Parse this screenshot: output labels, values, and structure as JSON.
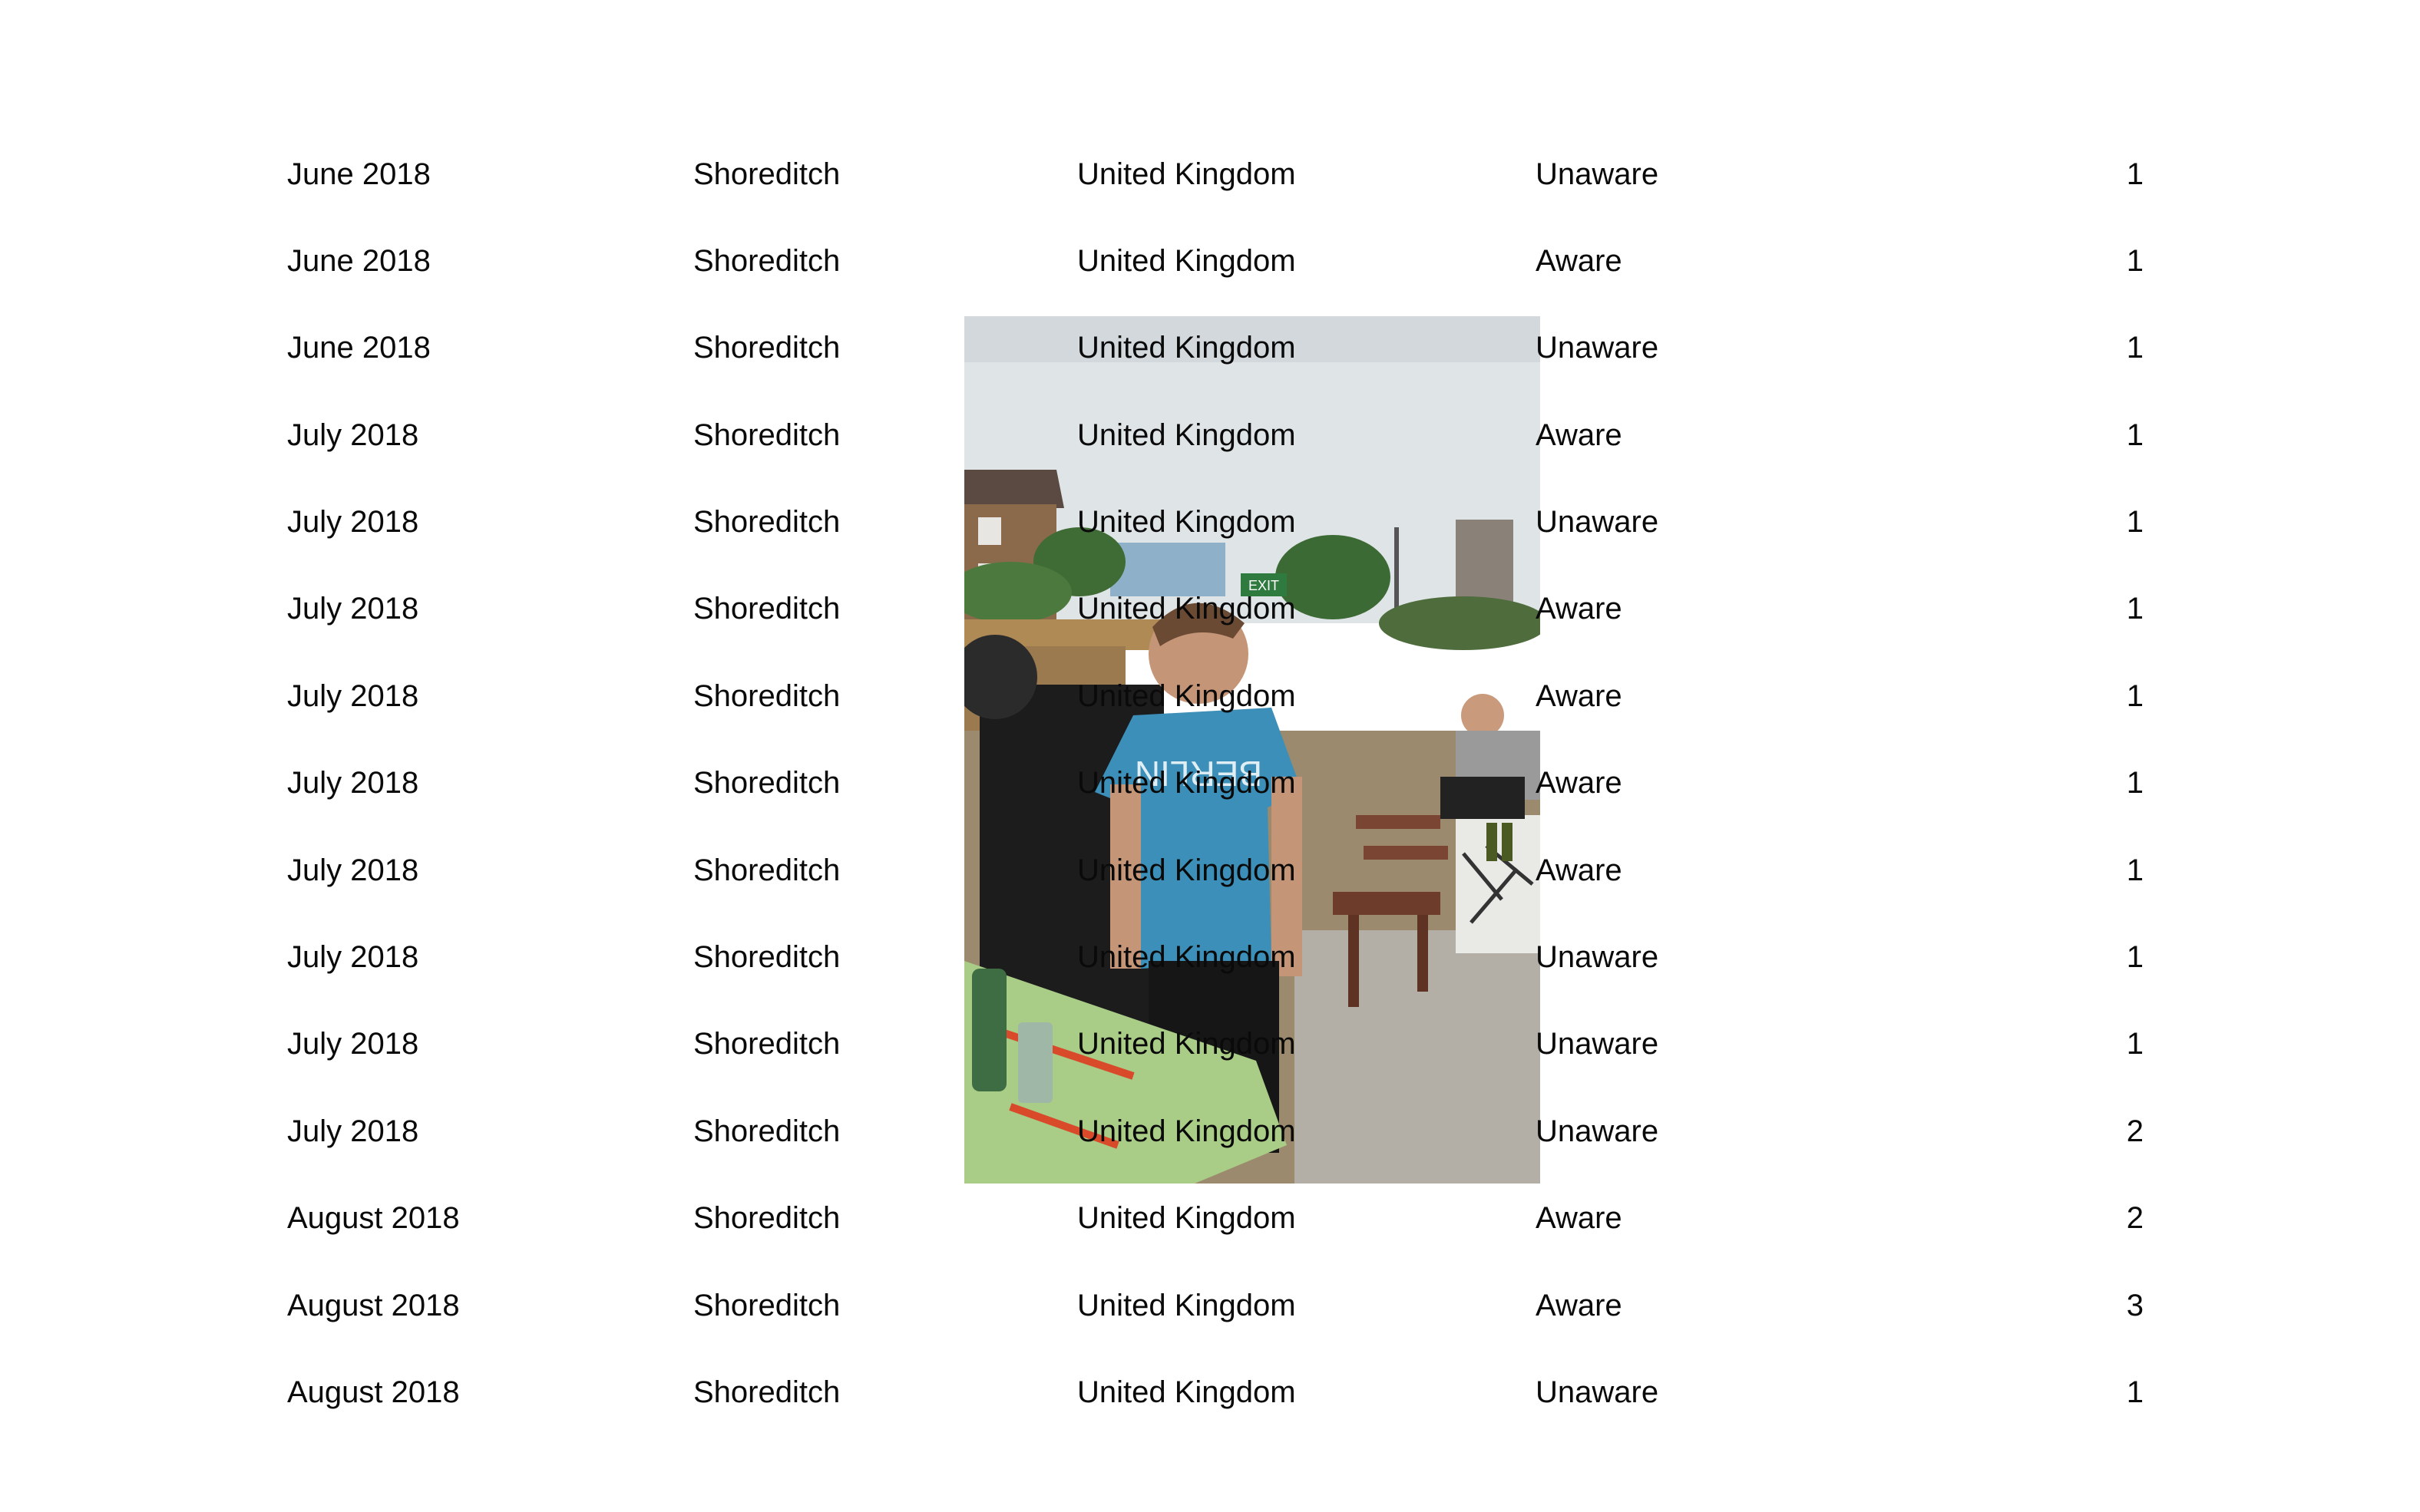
{
  "rows": [
    {
      "date": "June 2018",
      "area": "Shoreditch",
      "country": "United Kingdom",
      "status": "Unaware",
      "count": "1"
    },
    {
      "date": "June 2018",
      "area": "Shoreditch",
      "country": "United Kingdom",
      "status": "Aware",
      "count": "1"
    },
    {
      "date": "June 2018",
      "area": "Shoreditch",
      "country": "United Kingdom",
      "status": "Unaware",
      "count": "1"
    },
    {
      "date": "July 2018",
      "area": "Shoreditch",
      "country": "United Kingdom",
      "status": "Aware",
      "count": "1"
    },
    {
      "date": "July 2018",
      "area": "Shoreditch",
      "country": "United Kingdom",
      "status": "Unaware",
      "count": "1"
    },
    {
      "date": "July 2018",
      "area": "Shoreditch",
      "country": "United Kingdom",
      "status": "Aware",
      "count": "1"
    },
    {
      "date": "July 2018",
      "area": "Shoreditch",
      "country": "United Kingdom",
      "status": "Aware",
      "count": "1"
    },
    {
      "date": "July 2018",
      "area": "Shoreditch",
      "country": "United Kingdom",
      "status": "Aware",
      "count": "1"
    },
    {
      "date": "July 2018",
      "area": "Shoreditch",
      "country": "United Kingdom",
      "status": "Aware",
      "count": "1"
    },
    {
      "date": "July 2018",
      "area": "Shoreditch",
      "country": "United Kingdom",
      "status": "Unaware",
      "count": "1"
    },
    {
      "date": "July 2018",
      "area": "Shoreditch",
      "country": "United Kingdom",
      "status": "Unaware",
      "count": "1"
    },
    {
      "date": "July 2018",
      "area": "Shoreditch",
      "country": "United Kingdom",
      "status": "Unaware",
      "count": "2"
    },
    {
      "date": "August 2018",
      "area": "Shoreditch",
      "country": "United Kingdom",
      "status": "Aware",
      "count": "2"
    },
    {
      "date": "August 2018",
      "area": "Shoreditch",
      "country": "United Kingdom",
      "status": "Aware",
      "count": "3"
    },
    {
      "date": "August 2018",
      "area": "Shoreditch",
      "country": "United Kingdom",
      "status": "Unaware",
      "count": "1"
    }
  ],
  "photo": {
    "sign_text": "EXIT",
    "shirt_text": "BERLIN"
  }
}
